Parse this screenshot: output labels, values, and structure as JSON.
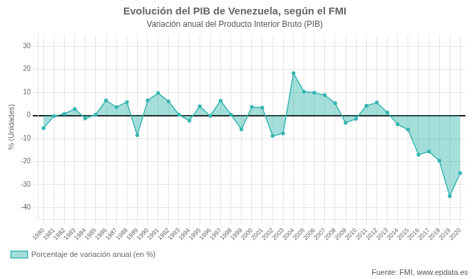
{
  "chart_data": {
    "type": "area",
    "title": "Evolución del PIB de Venezuela, según el FMI",
    "subtitle": "Variación anual del Producto Interior Bruto (PIB)",
    "ylabel": "% (Unidades)",
    "source": "Fuente: FMI, www.epdata.es",
    "x": [
      1980,
      1981,
      1982,
      1983,
      1984,
      1985,
      1986,
      1987,
      1988,
      1989,
      1990,
      1991,
      1992,
      1993,
      1994,
      1995,
      1996,
      1997,
      1998,
      1999,
      2000,
      2001,
      2002,
      2003,
      2004,
      2005,
      2006,
      2007,
      2008,
      2009,
      2010,
      2011,
      2012,
      2013,
      2014,
      2015,
      2016,
      2017,
      2018,
      2019,
      2020
    ],
    "series": [
      {
        "name": "Porcentaje de variación anual (en %)",
        "color": "#36b5b0",
        "values": [
          -5.5,
          -0.3,
          0.7,
          2.8,
          -1.3,
          0.3,
          6.5,
          3.6,
          5.8,
          -8.6,
          6.5,
          9.7,
          6.1,
          0.3,
          -2.3,
          4.0,
          -0.2,
          6.4,
          0.3,
          -6.0,
          3.7,
          3.4,
          -8.9,
          -7.8,
          18.3,
          10.3,
          9.9,
          8.8,
          5.3,
          -3.2,
          -1.5,
          4.2,
          5.6,
          1.3,
          -3.9,
          -6.2,
          -17.0,
          -15.7,
          -19.6,
          -35.0,
          -25.0
        ]
      }
    ],
    "xlim": [
      1979.5,
      2020.5
    ],
    "xticks": [
      1980,
      1981,
      1982,
      1983,
      1984,
      1985,
      1986,
      1987,
      1988,
      1989,
      1990,
      1991,
      1992,
      1993,
      1994,
      1995,
      1996,
      1997,
      1998,
      1999,
      2000,
      2001,
      2002,
      2003,
      2004,
      2005,
      2006,
      2007,
      2008,
      2009,
      2010,
      2011,
      2012,
      2013,
      2014,
      2015,
      2016,
      2017,
      2018,
      2019,
      2020
    ],
    "ylim": [
      -45,
      35
    ],
    "yticks": [
      -40,
      -30,
      -20,
      -10,
      0,
      10,
      20,
      30
    ],
    "grid": true,
    "legend": "bottom"
  }
}
